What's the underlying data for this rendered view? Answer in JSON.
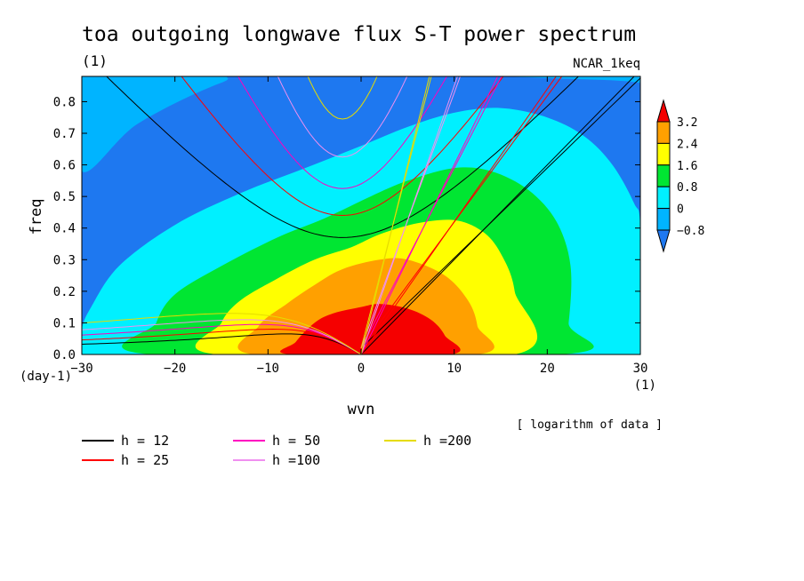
{
  "chart_data": {
    "type": "heatmap",
    "title": "toa outgoing longwave flux S-T power spectrum",
    "subtitle_left": "(1)",
    "subtitle_right": "NCAR_1keq",
    "xlabel": "wvn",
    "ylabel": "freq",
    "x_unit_label": "(1)",
    "y_unit_label": "(day-1)",
    "xlim": [
      -30,
      30
    ],
    "ylim": [
      0,
      0.88
    ],
    "xticks": [
      -30,
      -20,
      -10,
      0,
      10,
      20,
      30
    ],
    "xtick_labels": [
      "−30",
      "−20",
      "−10",
      "0",
      "10",
      "20",
      "30"
    ],
    "yticks": [
      0.0,
      0.1,
      0.2,
      0.3,
      0.4,
      0.5,
      0.6,
      0.7,
      0.8
    ],
    "ytick_labels": [
      "0.0",
      "0.1",
      "0.2",
      "0.3",
      "0.4",
      "0.5",
      "0.6",
      "0.7",
      "0.8"
    ],
    "note": "[ logarithm of data ]",
    "colorbar": {
      "levels": [
        -0.8,
        0,
        0.8,
        1.6,
        2.4,
        3.2
      ],
      "labels": [
        "−0.8",
        "0",
        "0.8",
        "1.6",
        "2.4",
        "3.2"
      ],
      "colors": [
        "#1e78f0",
        "#00b4ff",
        "#00f0ff",
        "#00e632",
        "#ffff00",
        "#ffa000",
        "#f50000"
      ]
    },
    "contour_levels": [
      {
        "level": -0.8,
        "color": "#00b4ff",
        "outline": [
          [
            -30,
            0.88
          ],
          [
            -30,
            0.58
          ],
          [
            -24,
            0.73
          ],
          [
            -15,
            0.86
          ],
          [
            -10,
            0.88
          ],
          [
            30,
            0.88
          ],
          [
            30,
            0.83
          ],
          [
            25,
            0.87
          ]
        ]
      },
      {
        "level": 0,
        "color": "#00f0ff",
        "outline": [
          [
            -30,
            0
          ],
          [
            -30,
            0.08
          ],
          [
            -29,
            0.15
          ],
          [
            -26,
            0.28
          ],
          [
            -20,
            0.41
          ],
          [
            -13,
            0.51
          ],
          [
            -6,
            0.59
          ],
          [
            0,
            0.66
          ],
          [
            5,
            0.72
          ],
          [
            10,
            0.765
          ],
          [
            15,
            0.78
          ],
          [
            20,
            0.75
          ],
          [
            24,
            0.69
          ],
          [
            27,
            0.6
          ],
          [
            29.3,
            0.48
          ],
          [
            30,
            0.4
          ],
          [
            30,
            0
          ]
        ]
      },
      {
        "level": 0.8,
        "color": "#00e632",
        "outline": [
          [
            -22.5,
            0
          ],
          [
            -22,
            0.1
          ],
          [
            -20,
            0.19
          ],
          [
            -15,
            0.28
          ],
          [
            -9,
            0.37
          ],
          [
            -4,
            0.43
          ],
          [
            1,
            0.5
          ],
          [
            5,
            0.55
          ],
          [
            10,
            0.59
          ],
          [
            14,
            0.58
          ],
          [
            18,
            0.52
          ],
          [
            21,
            0.42
          ],
          [
            22.5,
            0.28
          ],
          [
            22.3,
            0.1
          ],
          [
            21.5,
            0
          ]
        ]
      },
      {
        "level": 1.6,
        "color": "#ffff00",
        "outline": [
          [
            -15.5,
            0
          ],
          [
            -15,
            0.1
          ],
          [
            -13,
            0.17
          ],
          [
            -9,
            0.24
          ],
          [
            -5,
            0.3
          ],
          [
            -1,
            0.34
          ],
          [
            2,
            0.38
          ],
          [
            6,
            0.415
          ],
          [
            10,
            0.425
          ],
          [
            13,
            0.39
          ],
          [
            15,
            0.32
          ],
          [
            16.5,
            0.2
          ],
          [
            16.5,
            0
          ]
        ]
      },
      {
        "level": 2.4,
        "color": "#ffa000",
        "outline": [
          [
            -11.5,
            0
          ],
          [
            -11,
            0.09
          ],
          [
            -8,
            0.16
          ],
          [
            -5,
            0.22
          ],
          [
            -2,
            0.27
          ],
          [
            2,
            0.3
          ],
          [
            5,
            0.3
          ],
          [
            9,
            0.25
          ],
          [
            11.5,
            0.17
          ],
          [
            12.5,
            0.09
          ],
          [
            12.5,
            0
          ]
        ]
      },
      {
        "level": 3.2,
        "color": "#f50000",
        "outline": [
          [
            -7.5,
            0
          ],
          [
            -7,
            0.04
          ],
          [
            -5,
            0.1
          ],
          [
            -3,
            0.13
          ],
          [
            0,
            0.15
          ],
          [
            2,
            0.16
          ],
          [
            5,
            0.145
          ],
          [
            7.5,
            0.11
          ],
          [
            9,
            0.06
          ],
          [
            9.5,
            0
          ]
        ]
      }
    ],
    "series": [
      {
        "name": "h = 12",
        "color": "#000000"
      },
      {
        "name": "h = 25",
        "color": "#ff0000"
      },
      {
        "name": "h = 50",
        "color": "#ff00c0"
      },
      {
        "name": "h =100",
        "color": "#f090f0"
      },
      {
        "name": "h =200",
        "color": "#e6dc00"
      }
    ],
    "dispersion": {
      "kelvin_slopes": [
        0.03,
        0.042,
        0.06,
        0.085,
        0.12
      ],
      "ig_minima": [
        0.37,
        0.44,
        0.525,
        0.625,
        0.745
      ],
      "rossby_max": [
        0.065,
        0.08,
        0.095,
        0.11,
        0.13
      ]
    }
  }
}
